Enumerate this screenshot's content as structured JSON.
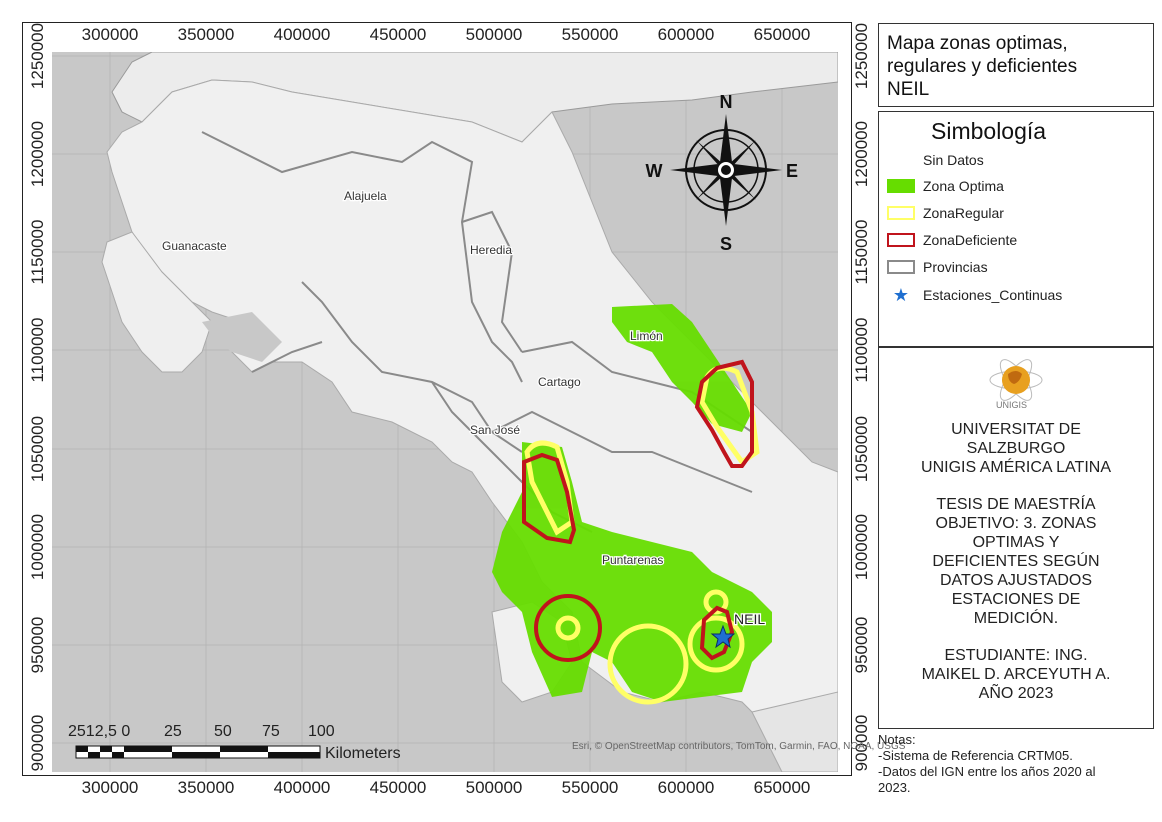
{
  "map": {
    "x_ticks": [
      "300000",
      "350000",
      "400000",
      "450000",
      "500000",
      "550000",
      "600000",
      "650000"
    ],
    "y_ticks": [
      "1250000",
      "1200000",
      "1150000",
      "1100000",
      "1050000",
      "1000000",
      "950000",
      "900000"
    ],
    "provinces": {
      "alajuela": "Alajuela",
      "guanacaste": "Guanacaste",
      "heredia": "Heredia",
      "limon": "Limón",
      "cartago": "Cartago",
      "san_jose": "San José",
      "puntarenas": "Puntarenas"
    },
    "station_label": "NEIL",
    "attribution": "Esri, © OpenStreetMap contributors, TomTom, Garmin, FAO, NOAA, USGS",
    "north_arrow": {
      "n": "N",
      "s": "S",
      "e": "E",
      "w": "W"
    },
    "scale_bar": {
      "labels": [
        "2512,5 0",
        "25",
        "50",
        "75",
        "100"
      ],
      "unit": "Kilometers"
    },
    "colors": {
      "land": "#f0f0f0",
      "sea": "#c8c8c8",
      "optima": "#66dd00",
      "regular": "#ffff66",
      "deficiente": "#c0141c",
      "provincias": "#8a8a8a",
      "station": "#1f6fd0"
    }
  },
  "title": {
    "lines": [
      "Mapa zonas optimas,",
      "regulares y deficientes",
      "NEIL"
    ]
  },
  "legend": {
    "title": "Simbología",
    "items": [
      {
        "label": "Sin Datos"
      },
      {
        "label": "Zona Optima"
      },
      {
        "label": "ZonaRegular"
      },
      {
        "label": "ZonaDeficiente"
      },
      {
        "label": "Provincias"
      },
      {
        "label": "Estaciones_Continuas"
      }
    ]
  },
  "info": {
    "logo_text": "UNIGIS",
    "university": [
      "UNIVERSITAT DE",
      "SALZBURGO",
      "UNIGIS AMÉRICA LATINA"
    ],
    "thesis": [
      "TESIS DE MAESTRÍA",
      "OBJETIVO: 3. ZONAS",
      "OPTIMAS Y",
      "DEFICIENTES SEGÚN",
      "DATOS AJUSTADOS",
      "ESTACIONES DE",
      "MEDICIÓN."
    ],
    "student": [
      "ESTUDIANTE: ING.",
      "MAIKEL D. ARCEYUTH A.",
      "AÑO 2023"
    ]
  },
  "notes": {
    "lines": [
      "Notas:",
      "-Sistema de Referencia CRTM05.",
      "-Datos del IGN entre los años 2020 al",
      "2023."
    ]
  }
}
